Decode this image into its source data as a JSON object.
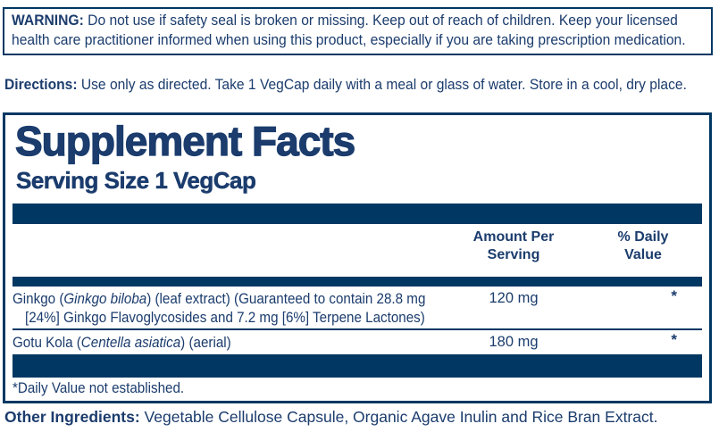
{
  "colors": {
    "navy_text": "#1b3c6d",
    "navy_bar": "#003863",
    "background": "#ffffff"
  },
  "warning": {
    "label": "WARNING:",
    "text": " Do not use if safety seal is broken or missing. Keep out of reach of  children. Keep your licensed health care practitioner informed when using this product, especially if you are taking prescription medication."
  },
  "directions": {
    "label": "Directions:",
    "text": " Use only as directed. Take 1 VegCap daily with a meal or glass of water. Store in a cool, dry place."
  },
  "supplement_facts": {
    "title": "Supplement Facts",
    "serving_size": "Serving Size 1 VegCap",
    "columns": {
      "amount": "Amount Per\nServing",
      "daily_value": "% Daily\nValue"
    },
    "rows": [
      {
        "name_pre": "Ginkgo (",
        "name_italic": "Ginkgo biloba",
        "name_post": ") (leaf extract) (Guaranteed to contain 28.8 mg",
        "name_line2": "[24%] Ginkgo Flavoglycosides and 7.2 mg [6%] Terpene Lactones)",
        "amount": "120 mg",
        "daily_value": "*"
      },
      {
        "name_pre": "Gotu Kola (",
        "name_italic": "Centella asiatica",
        "name_post": ") (aerial)",
        "amount": "180 mg",
        "daily_value": "*"
      }
    ],
    "footnote": "*Daily Value not established."
  },
  "other_ingredients": {
    "label": "Other Ingredients:",
    "text": " Vegetable Cellulose Capsule, Organic Agave Inulin and Rice Bran Extract."
  }
}
